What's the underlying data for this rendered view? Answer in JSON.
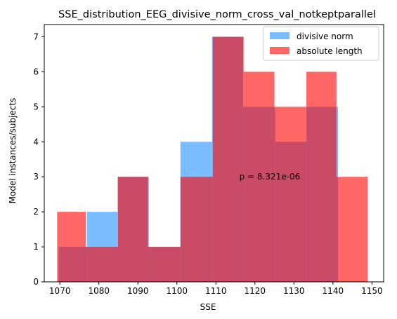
{
  "chart_data": {
    "type": "histogram",
    "title": "SSE_distribution_EEG_divisive_norm_cross_val_notkeptparallel",
    "xlabel": "SSE",
    "ylabel": "Model instances/subjects",
    "xlim": [
      1066,
      1153
    ],
    "ylim": [
      0,
      7.35
    ],
    "xticks": [
      1070,
      1080,
      1090,
      1100,
      1110,
      1120,
      1130,
      1140,
      1150
    ],
    "yticks": [
      0,
      1,
      2,
      3,
      4,
      5,
      6,
      7
    ],
    "grid": false,
    "legend_position": "top-right",
    "series": [
      {
        "name": "divisive norm",
        "color": "#1f8fff",
        "alpha": 0.6,
        "bin_edges": [
          1069.7,
          1077.0,
          1084.8,
          1092.8,
          1100.9,
          1109.0,
          1117.0,
          1125.2,
          1133.2,
          1141.3,
          1149.3
        ],
        "counts": [
          1,
          2,
          3,
          1,
          4,
          7,
          5,
          4,
          5,
          0
        ]
      },
      {
        "name": "absolute length",
        "color": "#ff0000",
        "alpha": 0.6,
        "bin_edges": [
          1069.3,
          1076.7,
          1084.9,
          1092.6,
          1100.9,
          1109.2,
          1117.1,
          1125.0,
          1133.2,
          1140.9,
          1148.9
        ],
        "counts": [
          2,
          1,
          3,
          1,
          3,
          7,
          6,
          5,
          6,
          3
        ]
      }
    ],
    "annotations": [
      {
        "text": "p = 8.321e-06",
        "x": 1116.0,
        "y": 3.0
      }
    ]
  }
}
